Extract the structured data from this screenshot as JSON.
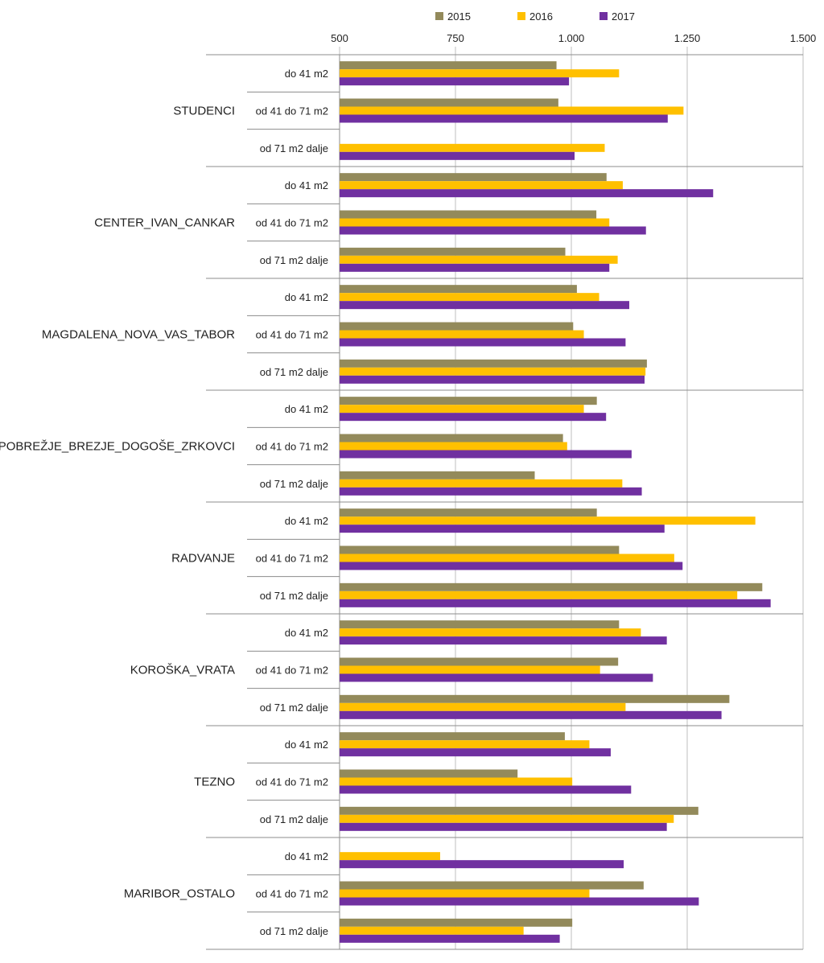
{
  "colors": {
    "s2015": "#938a5b",
    "s2016": "#ffc000",
    "s2017": "#7030a0",
    "grid": "#bfbfbf",
    "axis": "#8c8c8c"
  },
  "chart_data": {
    "type": "bar",
    "orientation": "horizontal",
    "title": "",
    "xlabel": "",
    "ylabel": "",
    "xlim": [
      500,
      1500
    ],
    "ticks": [
      {
        "value": 500,
        "label": "500"
      },
      {
        "value": 750,
        "label": "750"
      },
      {
        "value": 1000,
        "label": "1.000"
      },
      {
        "value": 1250,
        "label": "1.250"
      },
      {
        "value": 1500,
        "label": "1.500"
      }
    ],
    "grid": true,
    "legend_position": "top",
    "series_names": [
      "2015",
      "2016",
      "2017"
    ],
    "groups": [
      {
        "name": "STUDENCI",
        "rows": [
          {
            "label": "do 41 m2",
            "values": [
              968,
              1103,
              995
            ]
          },
          {
            "label": "od 41 do 71 m2",
            "values": [
              972,
              1242,
              1208
            ]
          },
          {
            "label": "od 71 m2 dalje",
            "values": [
              null,
              1072,
              1007
            ]
          }
        ]
      },
      {
        "name": "CENTER_IVAN_CANKAR",
        "rows": [
          {
            "label": "do 41 m2",
            "values": [
              1076,
              1111,
              1306
            ]
          },
          {
            "label": "od 41 do 71 m2",
            "values": [
              1054,
              1082,
              1161
            ]
          },
          {
            "label": "od 71 m2 dalje",
            "values": [
              987,
              1100,
              1082
            ]
          }
        ]
      },
      {
        "name": "MAGDALENA_NOVA_VAS_TABOR",
        "rows": [
          {
            "label": "do 41 m2",
            "values": [
              1012,
              1060,
              1125
            ]
          },
          {
            "label": "od 41 do 71 m2",
            "values": [
              1004,
              1027,
              1117
            ]
          },
          {
            "label": "od 71 m2 dalje",
            "values": [
              1163,
              1160,
              1158
            ]
          }
        ]
      },
      {
        "name": "POBREŽJE_BREZJE_DOGOŠE_ZRKOVCI",
        "rows": [
          {
            "label": "do 41 m2",
            "values": [
              1055,
              1027,
              1075
            ]
          },
          {
            "label": "od 41 do 71 m2",
            "values": [
              982,
              991,
              1130
            ]
          },
          {
            "label": "od 71 m2 dalje",
            "values": [
              921,
              1110,
              1152
            ]
          }
        ]
      },
      {
        "name": "RADVANJE",
        "rows": [
          {
            "label": "do 41 m2",
            "values": [
              1055,
              1397,
              1201
            ]
          },
          {
            "label": "od 41 do 71 m2",
            "values": [
              1103,
              1222,
              1240
            ]
          },
          {
            "label": "od 71 m2 dalje",
            "values": [
              1412,
              1358,
              1430
            ]
          }
        ]
      },
      {
        "name": "KOROŠKA_VRATA",
        "rows": [
          {
            "label": "do 41 m2",
            "values": [
              1103,
              1150,
              1206
            ]
          },
          {
            "label": "od 41 do 71 m2",
            "values": [
              1101,
              1062,
              1176
            ]
          },
          {
            "label": "od 71 m2 dalje",
            "values": [
              1341,
              1117,
              1324
            ]
          }
        ]
      },
      {
        "name": "TEZNO",
        "rows": [
          {
            "label": "do 41 m2",
            "values": [
              986,
              1039,
              1085
            ]
          },
          {
            "label": "od 41 do 71 m2",
            "values": [
              884,
              1002,
              1129
            ]
          },
          {
            "label": "od 71 m2 dalje",
            "values": [
              1274,
              1221,
              1206
            ]
          }
        ]
      },
      {
        "name": "MARIBOR_OSTALO",
        "rows": [
          {
            "label": "do 41 m2",
            "values": [
              null,
              717,
              1113
            ]
          },
          {
            "label": "od 41 do 71 m2",
            "values": [
              1156,
              1039,
              1275
            ]
          },
          {
            "label": "od 71 m2 dalje",
            "values": [
              1002,
              897,
              975
            ]
          }
        ]
      }
    ]
  }
}
